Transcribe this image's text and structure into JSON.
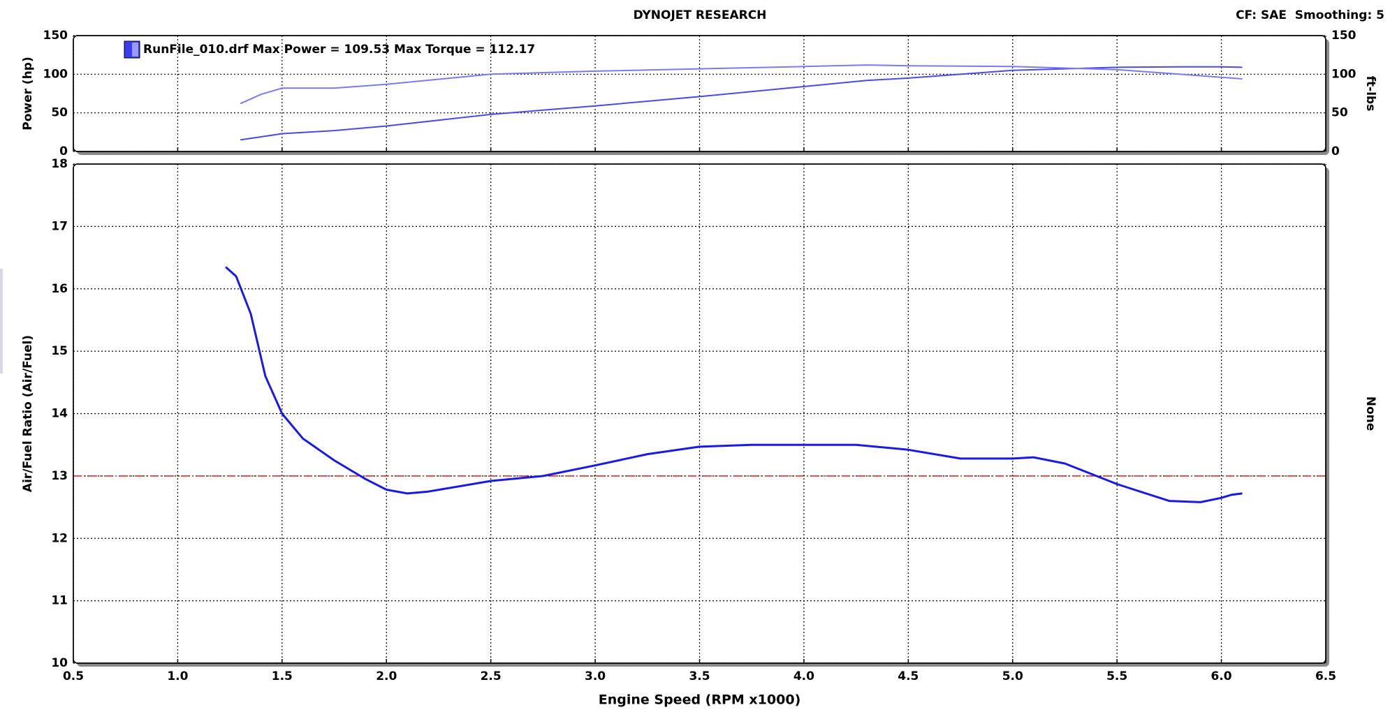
{
  "header": {
    "title": "DYNOJET RESEARCH",
    "info": "CF: SAE  Smoothing: 5"
  },
  "chart_data": [
    {
      "type": "line",
      "legend_label": "RunFile_010.drf Max Power = 109.53 Max Torque = 112.17",
      "legend_color": "#3c3cf0",
      "ylabel": "Power (hp)",
      "y2label": "ft-lbs",
      "x": [
        1.3,
        1.4,
        1.5,
        1.75,
        2.0,
        2.5,
        3.0,
        3.5,
        4.0,
        4.3,
        4.5,
        5.0,
        5.5,
        5.8,
        6.0,
        6.1
      ],
      "series": [
        {
          "color": "#4a4ae6",
          "values": [
            15,
            19,
            23,
            27,
            33,
            48,
            59,
            71,
            84,
            92,
            95,
            105,
            109,
            109.5,
            109.5,
            109
          ]
        },
        {
          "color": "#7a7af2",
          "axis": "y2",
          "values": [
            62,
            74,
            82,
            82,
            87,
            100,
            104,
            107,
            110,
            112,
            111,
            110,
            106,
            100,
            96,
            94
          ]
        }
      ],
      "xlim": [
        0.5,
        6.5
      ],
      "xticks": [
        0.5,
        1,
        1.5,
        2,
        2.5,
        3,
        3.5,
        4,
        4.5,
        5,
        5.5,
        6,
        6.5
      ],
      "ylim": [
        0,
        150
      ],
      "yticks": [
        0,
        50,
        100,
        150
      ],
      "y2lim": [
        0,
        150
      ],
      "y2ticks": [
        0,
        50,
        100,
        150
      ],
      "grid": true
    },
    {
      "type": "line",
      "xlabel": "Engine Speed (RPM x1000)",
      "ylabel": "Air/Fuel Ratio (Air/Fuel)",
      "y2label": "None",
      "x": [
        1.23,
        1.28,
        1.35,
        1.42,
        1.5,
        1.6,
        1.75,
        1.9,
        2.0,
        2.1,
        2.2,
        2.5,
        2.75,
        3.0,
        3.25,
        3.5,
        3.75,
        4.0,
        4.25,
        4.5,
        4.75,
        5.0,
        5.1,
        5.25,
        5.5,
        5.75,
        5.9,
        6.0,
        6.05,
        6.1
      ],
      "series": [
        {
          "color": "#1a1ae6",
          "values": [
            16.35,
            16.2,
            15.6,
            14.6,
            14.0,
            13.6,
            13.25,
            12.95,
            12.78,
            12.72,
            12.75,
            12.92,
            13.0,
            13.17,
            13.35,
            13.47,
            13.5,
            13.5,
            13.5,
            13.42,
            13.28,
            13.28,
            13.3,
            13.2,
            12.87,
            12.6,
            12.58,
            12.65,
            12.7,
            12.72
          ]
        }
      ],
      "reference_line": 13,
      "reference_color": "#e02020",
      "xlim": [
        0.5,
        6.5
      ],
      "xticks": [
        {
          "value": 0.5,
          "label": "0.5"
        },
        {
          "value": 1,
          "label": "1.0"
        },
        {
          "value": 1.5,
          "label": "1.5"
        },
        {
          "value": 2,
          "label": "2.0"
        },
        {
          "value": 2.5,
          "label": "2.5"
        },
        {
          "value": 3,
          "label": "3.0"
        },
        {
          "value": 3.5,
          "label": "3.5"
        },
        {
          "value": 4,
          "label": "4.0"
        },
        {
          "value": 4.5,
          "label": "4.5"
        },
        {
          "value": 5,
          "label": "5.0"
        },
        {
          "value": 5.5,
          "label": "5.5"
        },
        {
          "value": 6,
          "label": "6.0"
        },
        {
          "value": 6.5,
          "label": "6.5"
        }
      ],
      "ylim": [
        10,
        18
      ],
      "yticks": [
        10,
        11,
        12,
        13,
        14,
        15,
        16,
        17,
        18
      ],
      "grid": true
    }
  ]
}
